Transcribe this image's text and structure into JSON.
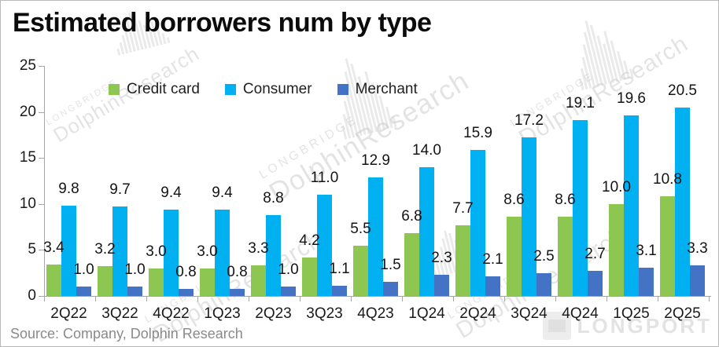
{
  "title": "Estimated borrowers num by type",
  "source_note": "Source: Company, Dolphin Research",
  "legend": {
    "items": [
      {
        "label": "Credit card",
        "color": "#8DC752"
      },
      {
        "label": "Consumer",
        "color": "#00B0F0"
      },
      {
        "label": "Merchant",
        "color": "#4472C4"
      }
    ]
  },
  "watermark": {
    "brand_upper": "LONGBRIDGE",
    "brand_main": "DolphinResearch",
    "corner_brand": "LONGPORT"
  },
  "colors": {
    "axis": "#a6a6a6",
    "text": "#1a1a1a",
    "source_text": "#8a8a8a",
    "credit_card": "#8DC752",
    "consumer": "#00B0F0",
    "merchant": "#4472C4"
  },
  "chart_data": {
    "type": "bar",
    "title": "Estimated borrowers num by type",
    "categories": [
      "2Q22",
      "3Q22",
      "4Q22",
      "1Q23",
      "2Q23",
      "3Q23",
      "4Q23",
      "1Q24",
      "2Q24",
      "3Q24",
      "4Q24",
      "1Q25",
      "2Q25"
    ],
    "series": [
      {
        "name": "Credit card",
        "color": "#8DC752",
        "values": [
          3.4,
          3.2,
          3.0,
          3.0,
          3.3,
          4.2,
          5.5,
          6.8,
          7.7,
          8.6,
          8.6,
          10.0,
          10.8
        ]
      },
      {
        "name": "Consumer",
        "color": "#00B0F0",
        "values": [
          9.8,
          9.7,
          9.4,
          9.4,
          8.8,
          11.0,
          12.9,
          14.0,
          15.9,
          17.2,
          19.1,
          19.6,
          20.5
        ]
      },
      {
        "name": "Merchant",
        "color": "#4472C4",
        "values": [
          1.0,
          1.0,
          0.8,
          0.8,
          1.0,
          1.1,
          1.5,
          2.3,
          2.1,
          2.5,
          2.7,
          3.1,
          3.3
        ]
      }
    ],
    "xlabel": "",
    "ylabel": "",
    "ylim": [
      0,
      25
    ],
    "yticks": [
      0,
      5,
      10,
      15,
      20,
      25
    ],
    "grid": false,
    "legend_position": "top-inside",
    "value_labels": true,
    "value_label_format": "one-decimal"
  }
}
